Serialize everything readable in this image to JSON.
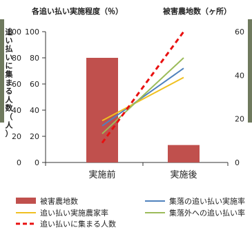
{
  "chart_data": {
    "type": "bar+line",
    "categories": [
      "実施前",
      "実施後"
    ],
    "axes": {
      "y_left_outer": {
        "label": "追い払いに集まる人数（人）",
        "ticks": [
          "0",
          "20",
          "40",
          "60",
          "80",
          "100"
        ],
        "range": [
          0,
          100
        ]
      },
      "y_left_inner": {
        "label": "各追い払い実施程度（％）",
        "ticks": [
          "0",
          "20",
          "40",
          "60",
          "80",
          "100"
        ],
        "range": [
          0,
          100
        ]
      },
      "y_right": {
        "label": "被害農地数（ヶ所）",
        "ticks": [
          "0",
          "20",
          "40",
          "60"
        ],
        "range": [
          0,
          60
        ]
      }
    },
    "bars": {
      "name": "被害農地数",
      "axis": "y_right",
      "color": "#c0504d",
      "values": [
        48,
        8
      ]
    },
    "lines": [
      {
        "name": "集落の追い払い実施率",
        "axis": "y_left_inner",
        "color": "#4f81bd",
        "dash": false,
        "values": [
          28,
          72
        ]
      },
      {
        "name": "追い払い実施農家率",
        "axis": "y_left_inner",
        "color": "#f0c020",
        "dash": false,
        "values": [
          32,
          65
        ]
      },
      {
        "name": "集落外への追い払い率",
        "axis": "y_left_inner",
        "color": "#9bbb59",
        "dash": false,
        "values": [
          22,
          80
        ]
      },
      {
        "name": "追い払いに集まる人数",
        "axis": "y_left_outer",
        "color": "#e81010",
        "dash": true,
        "values": [
          15,
          100
        ]
      }
    ],
    "grid": false,
    "legend": "bottom"
  }
}
